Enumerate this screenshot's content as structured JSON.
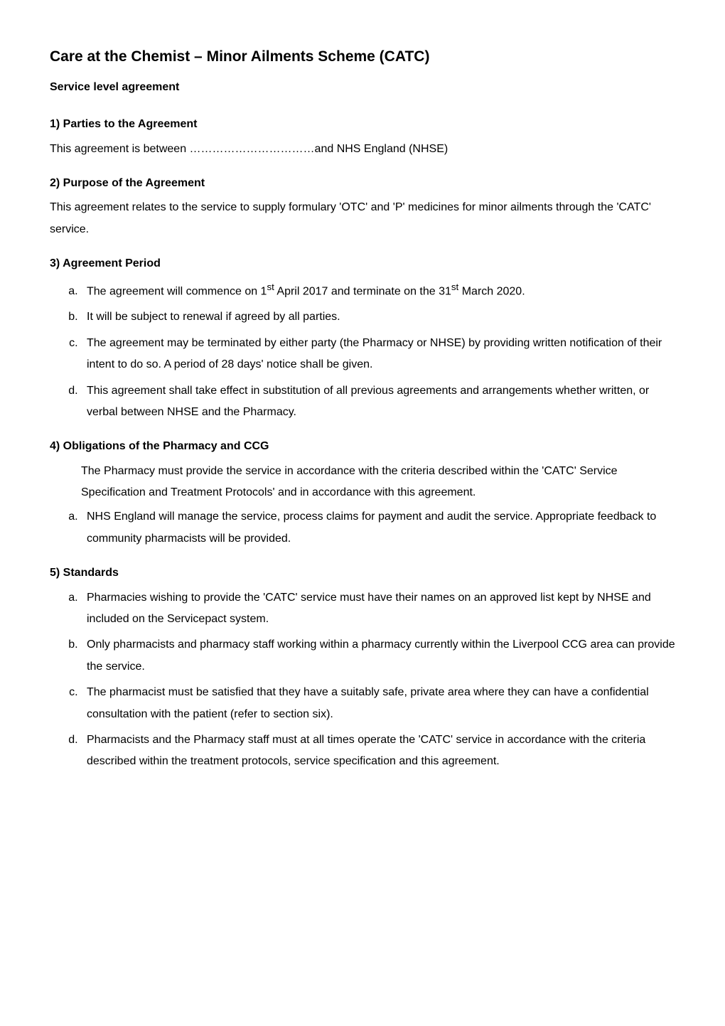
{
  "title": "Care at the Chemist – Minor Ailments Scheme (CATC)",
  "subtitle": "Service level agreement",
  "sections": {
    "s1": {
      "heading": "1)  Parties to the Agreement",
      "body": "This agreement is between ……………………………and NHS England (NHSE)"
    },
    "s2": {
      "heading": "2)  Purpose of the Agreement",
      "body": "This agreement relates to the service to supply formulary 'OTC' and 'P' medicines for minor ailments through the 'CATC' service."
    },
    "s3": {
      "heading": "3)  Agreement Period",
      "items": {
        "a": "The agreement will commence on 1st April 2017 and terminate on the 31st March 2020.",
        "b": "It will be subject to renewal if agreed by all parties.",
        "c": "The agreement may be terminated by either party (the Pharmacy or NHSE) by providing written notification of their intent to do so. A period of 28 days' notice shall be given.",
        "d": "This agreement shall take effect in substitution of all previous agreements and arrangements whether written, or verbal between NHSE and the Pharmacy."
      }
    },
    "s4": {
      "heading": "4)  Obligations of the Pharmacy and CCG",
      "lead": "The Pharmacy must provide the service in accordance with the criteria described within the 'CATC' Service Specification and Treatment Protocols' and in accordance with this agreement.",
      "items": {
        "a": "NHS England will manage the service, process claims for payment and audit the service. Appropriate feedback to community pharmacists will be provided."
      }
    },
    "s5": {
      "heading": "5)  Standards",
      "items": {
        "a": "Pharmacies wishing to provide the 'CATC' service must have their names on an approved list kept by NHSE and included on the Servicepact system.",
        "b": "Only pharmacists and pharmacy staff working within a pharmacy currently within the Liverpool CCG area can provide the service.",
        "c": "The pharmacist must be satisfied that they have a suitably safe, private area where they can have a confidential consultation with the patient (refer to section six).",
        "d": "Pharmacists and the Pharmacy staff must at all times operate the 'CATC' service in accordance with the criteria described within the treatment protocols, service specification and this agreement."
      }
    }
  }
}
